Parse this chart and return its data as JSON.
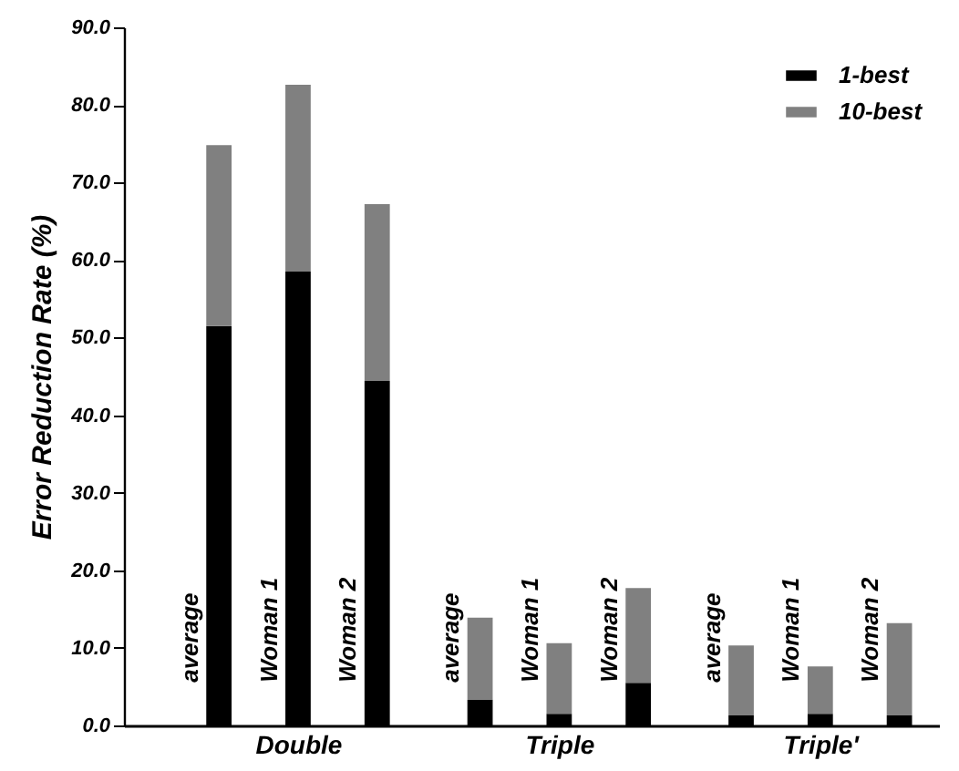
{
  "chart_data": {
    "type": "bar",
    "stacked": true,
    "ylabel": "Error Reduction Rate (%)",
    "categories": [
      "average",
      "Woman 1",
      "Woman 2",
      "average",
      "Woman 1",
      "Woman 2",
      "average",
      "Woman 1",
      "Woman 2"
    ],
    "series": [
      {
        "name": "1-best",
        "color": "#000000",
        "values": [
          51.5,
          58.5,
          44.4,
          3.3,
          1.5,
          5.5,
          1.3,
          1.5,
          1.3
        ]
      },
      {
        "name": "10-best",
        "color": "#808080",
        "values": [
          23.3,
          24.1,
          22.8,
          10.6,
          9.1,
          12.2,
          9.0,
          6.1,
          11.9
        ]
      }
    ],
    "annotations": [
      "Double",
      "Triple",
      "Triple'"
    ],
    "ylim": [
      0,
      90
    ],
    "yticks": [
      {
        "value": 0,
        "label": "0.0"
      },
      {
        "value": 10,
        "label": "10.0"
      },
      {
        "value": 20,
        "label": "20.0"
      },
      {
        "value": 30,
        "label": "30.0"
      },
      {
        "value": 40,
        "label": "40.0"
      },
      {
        "value": 50,
        "label": "50.0"
      },
      {
        "value": 60,
        "label": "60.0"
      },
      {
        "value": 70,
        "label": "70.0"
      },
      {
        "value": 80,
        "label": "80.0"
      },
      {
        "value": 90,
        "label": "90.0"
      }
    ],
    "legend": "top right"
  }
}
